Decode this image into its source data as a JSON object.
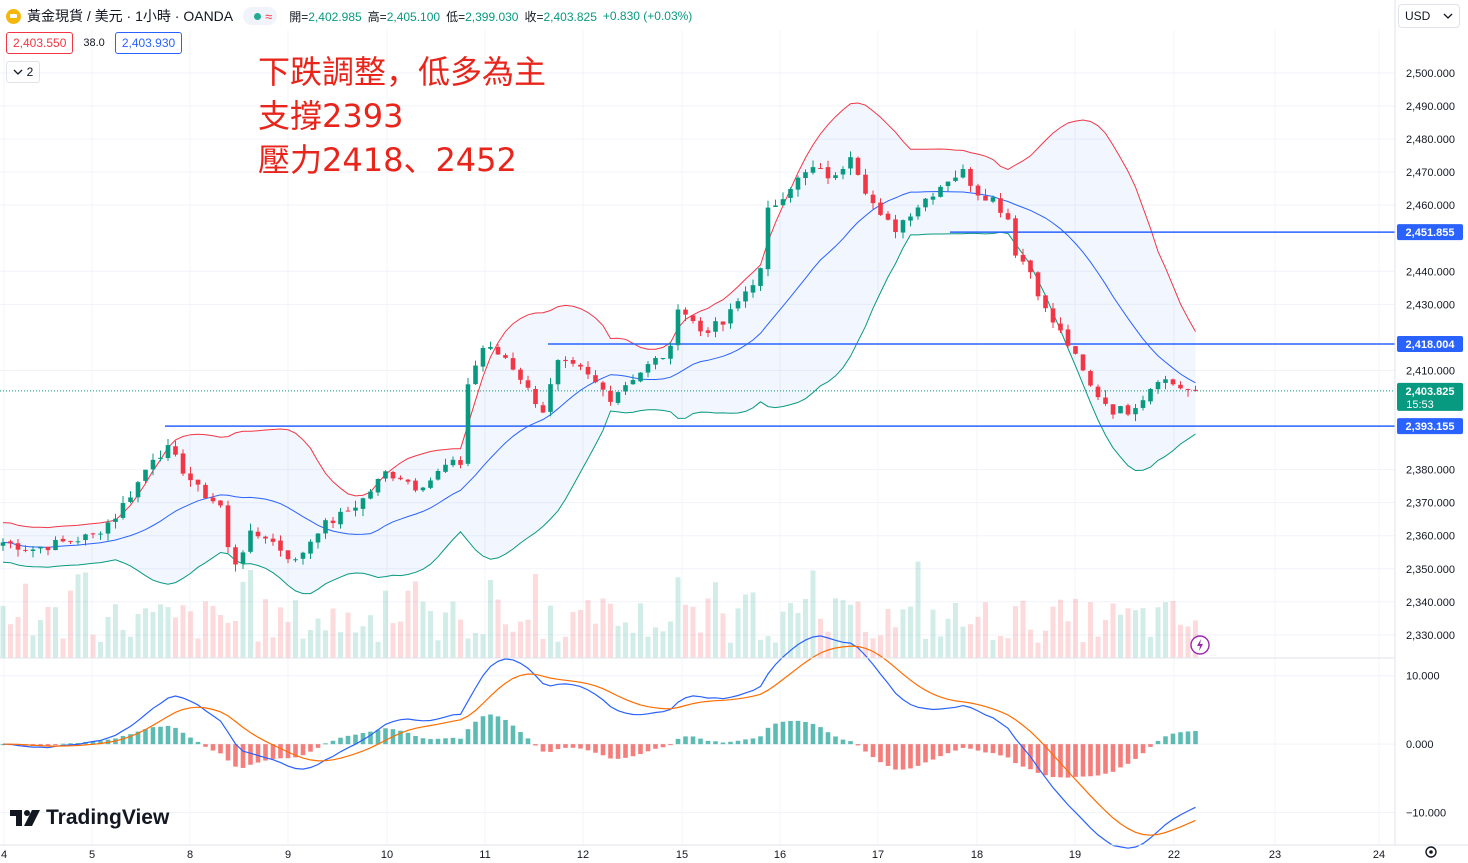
{
  "header": {
    "symbol_title": "黃金現貨 / 美元 · 1小時 · OANDA",
    "ohlc": [
      {
        "key": "開",
        "value": "2,402.985"
      },
      {
        "key": "高",
        "value": "2,405.100"
      },
      {
        "key": "低",
        "value": "2,399.030"
      },
      {
        "key": "收",
        "value": "2,403.825"
      }
    ],
    "change": "+0.830 (+0.03%)",
    "sell_price": "2,403.550",
    "spread": "38.0",
    "buy_price": "2,403.930",
    "indicator_count": "2",
    "wave_icon": "≈"
  },
  "annotation": {
    "line1": "下跌調整，低多為主",
    "line2": "支撐2393",
    "line3": "壓力2418、2452"
  },
  "currency": {
    "label": "USD",
    "icon": "chevron-down-icon"
  },
  "brand": {
    "name": "TradingView"
  },
  "colors": {
    "up": "#089981",
    "down": "#f23645",
    "hline": "#2962ff",
    "bb_upper": "#f23645",
    "bb_lower": "#089981",
    "bb_basis": "#2962ff",
    "macd": "#2962ff",
    "signal": "#ff6d00"
  },
  "chart_data": [
    {
      "type": "candlestick",
      "title": "黃金現貨 / 美元 · 1小時 · OANDA",
      "x_ticks": [
        "4",
        "5",
        "8",
        "9",
        "10",
        "11",
        "12",
        "15",
        "16",
        "17",
        "18",
        "19",
        "22",
        "23",
        "24"
      ],
      "y_ticks": [
        "2,500.000",
        "2,490.000",
        "2,480.000",
        "2,470.000",
        "2,460.000",
        "2,440.000",
        "2,430.000",
        "2,410.000",
        "2,380.000",
        "2,370.000",
        "2,360.000",
        "2,350.000",
        "2,340.000",
        "2,330.000"
      ],
      "ylim": [
        2323,
        2513
      ],
      "horizontal_lines": [
        {
          "value": 2451.855,
          "label": "2,451.855"
        },
        {
          "value": 2418.004,
          "label": "2,418.004"
        },
        {
          "value": 2393.155,
          "label": "2,393.155"
        }
      ],
      "current_price": {
        "value": 2403.825,
        "label": "2,403.825",
        "countdown": "15:53"
      },
      "close_path": [
        [
          0,
          2358
        ],
        [
          4,
          2356
        ],
        [
          8,
          2358
        ],
        [
          12,
          2360
        ],
        [
          15,
          2366
        ],
        [
          18,
          2376
        ],
        [
          20,
          2384
        ],
        [
          22,
          2386
        ],
        [
          24,
          2380
        ],
        [
          26,
          2374
        ],
        [
          29,
          2369
        ],
        [
          30,
          2356
        ],
        [
          31,
          2352
        ],
        [
          33,
          2360
        ],
        [
          35,
          2360
        ],
        [
          37,
          2356
        ],
        [
          39,
          2352
        ],
        [
          42,
          2362
        ],
        [
          45,
          2366
        ],
        [
          48,
          2371
        ],
        [
          51,
          2379
        ],
        [
          53,
          2378
        ],
        [
          55,
          2375
        ],
        [
          57,
          2377
        ],
        [
          59,
          2381
        ],
        [
          61,
          2382
        ],
        [
          62,
          2406
        ],
        [
          64,
          2417
        ],
        [
          67,
          2414
        ],
        [
          69,
          2408
        ],
        [
          70,
          2404
        ],
        [
          72,
          2398
        ],
        [
          74,
          2412
        ],
        [
          77,
          2410
        ],
        [
          80,
          2404
        ],
        [
          81,
          2402
        ],
        [
          84,
          2408
        ],
        [
          87,
          2413
        ],
        [
          89,
          2416
        ],
        [
          90,
          2430
        ],
        [
          93,
          2422
        ],
        [
          96,
          2424
        ],
        [
          99,
          2434
        ],
        [
          101,
          2440
        ],
        [
          102,
          2458
        ],
        [
          105,
          2466
        ],
        [
          108,
          2471
        ],
        [
          111,
          2468
        ],
        [
          113,
          2476
        ],
        [
          115,
          2465
        ],
        [
          117,
          2456
        ],
        [
          119,
          2453
        ],
        [
          121,
          2458
        ],
        [
          123,
          2462
        ],
        [
          126,
          2468
        ],
        [
          128,
          2470
        ],
        [
          130,
          2464
        ],
        [
          132,
          2462
        ],
        [
          134,
          2456
        ],
        [
          135,
          2446
        ],
        [
          137,
          2440
        ],
        [
          139,
          2428
        ],
        [
          142,
          2418
        ],
        [
          145,
          2405
        ],
        [
          148,
          2398
        ],
        [
          150,
          2398
        ],
        [
          152,
          2402
        ],
        [
          154,
          2408
        ],
        [
          156,
          2406
        ],
        [
          158,
          2404
        ],
        [
          159,
          2404
        ]
      ]
    },
    {
      "type": "bar",
      "title": "MACD",
      "y_ticks": [
        "10.000",
        "0.000",
        "−10.000"
      ],
      "ylim": [
        -14,
        12
      ]
    }
  ]
}
